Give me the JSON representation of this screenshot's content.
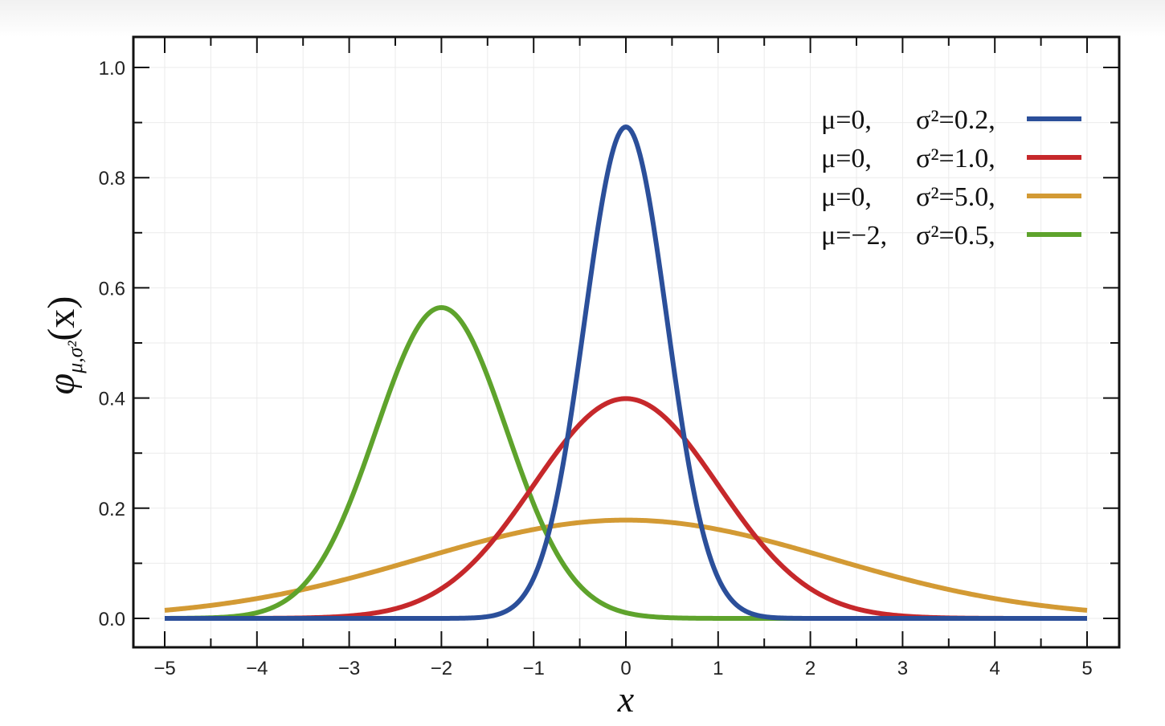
{
  "chart_data": {
    "type": "line",
    "title": "",
    "xlabel": "x",
    "ylabel": "φ_{μ,σ²}(x)",
    "ylabel_parts": {
      "main": "φ",
      "subscript": "μ,σ²",
      "arg": "(x)"
    },
    "xlim": [
      -5,
      5
    ],
    "ylim": [
      0,
      1.0
    ],
    "x_ticks": [
      "−5",
      "−4",
      "−3",
      "−2",
      "−1",
      "0",
      "1",
      "2",
      "3",
      "4",
      "5"
    ],
    "y_ticks": [
      "0.0",
      "0.2",
      "0.4",
      "0.6",
      "0.8",
      "1.0"
    ],
    "grid": true,
    "legend_position": "top-right",
    "series": [
      {
        "name": "μ=0, σ²=0.2,",
        "mu_text": "μ=0,",
        "sigma_text": "σ²=0.2,",
        "mu": 0,
        "variance": 0.2,
        "color": "#2b4f9a"
      },
      {
        "name": "μ=0, σ²=1.0,",
        "mu_text": "μ=0,",
        "sigma_text": "σ²=1.0,",
        "mu": 0,
        "variance": 1.0,
        "color": "#c6282b"
      },
      {
        "name": "μ=0, σ²=5.0,",
        "mu_text": "μ=0,",
        "sigma_text": "σ²=5.0,",
        "mu": 0,
        "variance": 5.0,
        "color": "#d39a34"
      },
      {
        "name": "μ=−2, σ²=0.5,",
        "mu_text": "μ=−2,",
        "sigma_text": "σ²=0.5,",
        "mu": -2,
        "variance": 0.5,
        "color": "#5ea32c"
      }
    ],
    "curve_order": [
      2,
      3,
      1,
      0
    ]
  }
}
